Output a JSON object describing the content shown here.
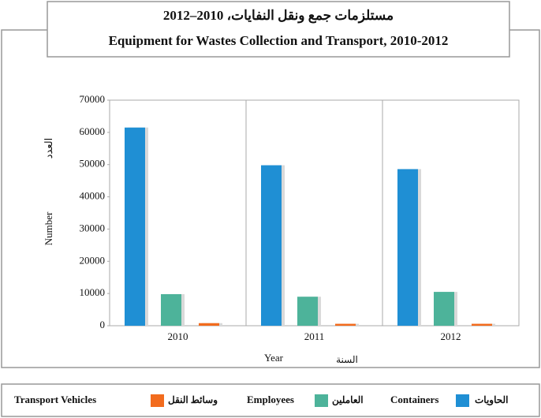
{
  "chart_data": {
    "type": "bar",
    "title": "مستلزمات جمع ونقل النفايات، 2010–2012",
    "subtitle": "Equipment for Wastes Collection and Transport, 2010-2012",
    "y_label": "Number",
    "y_label_ar": "العدد",
    "x_label": "Year",
    "x_label_ar": "السنة",
    "categories": [
      "2010",
      "2011",
      "2012"
    ],
    "series": [
      {
        "name": "Containers",
        "name_ar": "الحاويات",
        "color": "#1f8fd4",
        "values": [
          61500,
          49800,
          48600
        ]
      },
      {
        "name": "Employees",
        "name_ar": "العاملين",
        "color": "#4db39a",
        "values": [
          9800,
          9000,
          10500
        ]
      },
      {
        "name": "Transport Vehicles",
        "name_ar": "وسائط النقل",
        "color": "#f26b1d",
        "values": [
          800,
          600,
          600
        ]
      }
    ],
    "ylim": [
      0,
      70000
    ],
    "yticks": [
      0,
      10000,
      20000,
      30000,
      40000,
      50000,
      60000,
      70000
    ],
    "grid": false
  }
}
